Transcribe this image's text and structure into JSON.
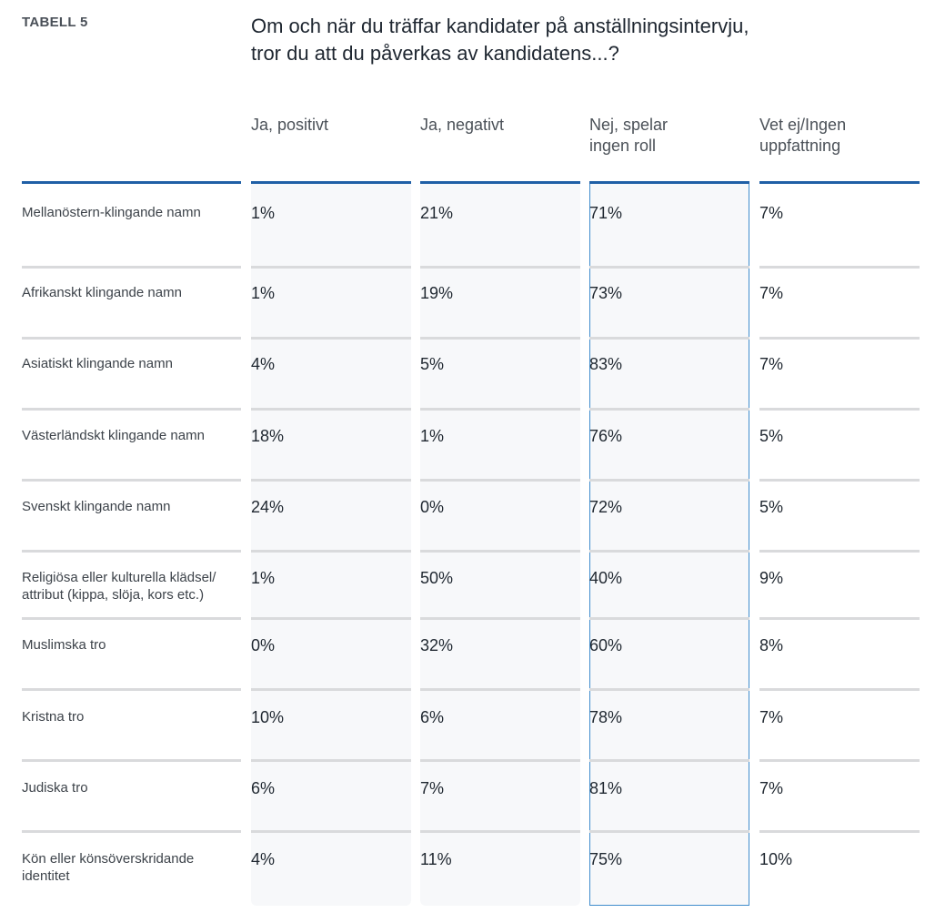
{
  "table_label": "TABELL 5",
  "title_line1": "Om och när du träffar kandidater på anställningsintervju,",
  "title_line2": "tror du att du påverkas av kandidatens...?",
  "columns": [
    {
      "line1": "Ja, positivt",
      "line2": ""
    },
    {
      "line1": "Ja, negativt",
      "line2": ""
    },
    {
      "line1": "Nej, spelar",
      "line2": "ingen roll"
    },
    {
      "line1": "Vet ej/Ingen",
      "line2": "uppfattning"
    }
  ],
  "highlight_color": "#3f8ccc",
  "accent_color": "#1f5fa6",
  "rows": [
    {
      "line1": "Mellanöstern-klingande namn",
      "line2": "",
      "values": [
        "1%",
        "21%",
        "71%",
        "7%"
      ]
    },
    {
      "line1": "Afrikanskt klingande namn",
      "line2": "",
      "values": [
        "1%",
        "19%",
        "73%",
        "7%"
      ]
    },
    {
      "line1": "Asiatiskt klingande namn",
      "line2": "",
      "values": [
        "4%",
        "5%",
        "83%",
        "7%"
      ]
    },
    {
      "line1": "Västerländskt klingande namn",
      "line2": "",
      "values": [
        "18%",
        "1%",
        "76%",
        "5%"
      ]
    },
    {
      "line1": "Svenskt klingande namn",
      "line2": "",
      "values": [
        "24%",
        "0%",
        "72%",
        "5%"
      ]
    },
    {
      "line1": "Religiösa eller kulturella klädsel/",
      "line2": "attribut (kippa, slöja, kors etc.)",
      "values": [
        "1%",
        "50%",
        "40%",
        "9%"
      ]
    },
    {
      "line1": "Muslimska tro",
      "line2": "",
      "values": [
        "0%",
        "32%",
        "60%",
        "8%"
      ]
    },
    {
      "line1": "Kristna tro",
      "line2": "",
      "values": [
        "10%",
        "6%",
        "78%",
        "7%"
      ]
    },
    {
      "line1": "Judiska tro",
      "line2": "",
      "values": [
        "6%",
        "7%",
        "81%",
        "7%"
      ]
    },
    {
      "line1": "Kön eller könsöverskridande",
      "line2": "identitet",
      "values": [
        "4%",
        "11%",
        "75%",
        "10%"
      ]
    }
  ]
}
